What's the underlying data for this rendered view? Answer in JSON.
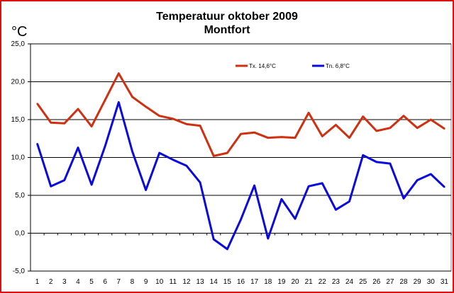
{
  "chart_data": {
    "type": "line",
    "title": "Temperatuur oktober 2009",
    "subtitle": "Montfort",
    "ylabel": "°C",
    "xlabel": "",
    "ylim": [
      -5,
      25
    ],
    "yticks": [
      "-5,0",
      "0,0",
      "5,0",
      "10,0",
      "15,0",
      "20,0",
      "25,0"
    ],
    "ytick_values": [
      -5,
      0,
      5,
      10,
      15,
      20,
      25
    ],
    "x": [
      1,
      2,
      3,
      4,
      5,
      6,
      7,
      8,
      9,
      10,
      11,
      12,
      13,
      14,
      15,
      16,
      17,
      18,
      19,
      20,
      21,
      22,
      23,
      24,
      25,
      26,
      27,
      28,
      29,
      30,
      31
    ],
    "grid": true,
    "legend_position": "top-right",
    "series": [
      {
        "name": "Tx. 14,6°C",
        "color": "#d03010",
        "values": [
          17.1,
          14.6,
          14.5,
          16.4,
          14.1,
          17.6,
          21.1,
          18.0,
          16.7,
          15.5,
          15.1,
          14.4,
          14.2,
          10.2,
          10.6,
          13.1,
          13.3,
          12.6,
          12.7,
          12.6,
          15.9,
          12.8,
          14.3,
          12.6,
          15.4,
          13.5,
          13.9,
          15.5,
          13.9,
          15.0,
          13.8
        ]
      },
      {
        "name": "Tn. 6,8°C",
        "color": "#0a0ae0",
        "values": [
          11.8,
          6.2,
          7.0,
          11.3,
          6.4,
          11.5,
          17.3,
          10.8,
          5.7,
          10.6,
          9.7,
          8.9,
          6.7,
          -0.8,
          -2.1,
          1.8,
          6.3,
          -0.7,
          4.5,
          1.9,
          6.2,
          6.6,
          3.1,
          4.2,
          10.3,
          9.4,
          9.2,
          4.6,
          7.0,
          7.8,
          6.1
        ]
      }
    ]
  }
}
